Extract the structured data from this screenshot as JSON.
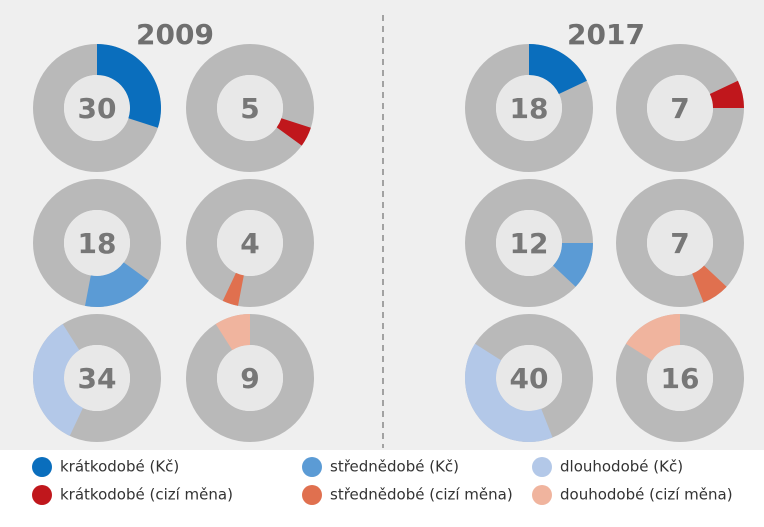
{
  "chart_data": {
    "type": "donut",
    "years": [
      "2009",
      "2017"
    ],
    "series": [
      {
        "name": "krátkodobé (Kč)",
        "color": "#0a6ebd",
        "values": [
          30,
          18
        ]
      },
      {
        "name": "střednědobé (Kč)",
        "color": "#5b9bd5",
        "values": [
          18,
          12
        ]
      },
      {
        "name": "dlouhodobé (Kč)",
        "color": "#b3c8e8",
        "values": [
          34,
          40
        ]
      },
      {
        "name": "krátkodobé (cizí měna)",
        "color": "#c0171c",
        "values": [
          5,
          7
        ]
      },
      {
        "name": "střednědobé (cizí měna)",
        "color": "#e0704f",
        "values": [
          4,
          7
        ]
      },
      {
        "name": "douhodobé (cizí měna)",
        "color": "#f0b49e",
        "values": [
          9,
          16
        ]
      }
    ]
  }
}
